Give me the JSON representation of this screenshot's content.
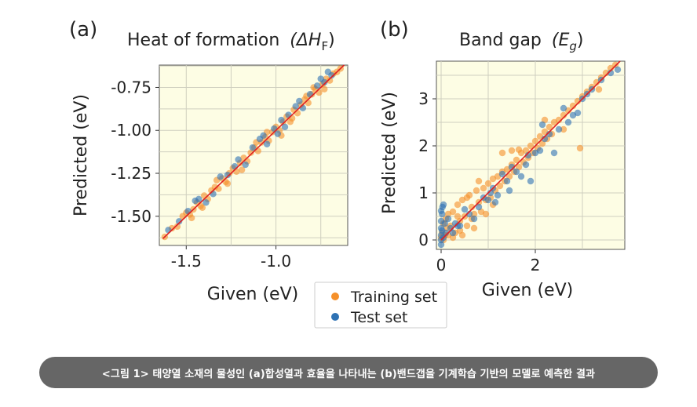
{
  "colors": {
    "training": "#f5902a",
    "test": "#2e72b4",
    "fit_line": "#e02020",
    "plot_bg": "#fdfde4",
    "grid": "#cfcfbf"
  },
  "legend": {
    "items": [
      {
        "label": "Training set",
        "color": "#f5902a"
      },
      {
        "label": "Test set",
        "color": "#2e72b4"
      }
    ]
  },
  "caption": "<그림 1> 태양열 소재의 물성인 (a)합성열과 효율을 나타내는 (b)밴드갭을 기계학습 기반의 모델로 예측한 결과",
  "chart_data": [
    {
      "type": "scatter",
      "panel": "(a)",
      "title": "Heat of formation",
      "title_symbol": "(ΔH",
      "title_subscript": "F",
      "title_close": ")",
      "xlabel": "Given (eV)",
      "ylabel": "Predicted (eV)",
      "xlim": [
        -1.65,
        -0.6
      ],
      "ylim": [
        -1.67,
        -0.62
      ],
      "xticks": [
        -1.5,
        -1.0
      ],
      "xtick_labels": [
        "-1.5",
        "-1.0"
      ],
      "yticks": [
        -1.5,
        -1.25,
        -1.0,
        -0.75
      ],
      "ytick_labels": [
        "-1.50",
        "-1.25",
        "-1.00",
        "-0.75"
      ],
      "grid": true,
      "fit_line": {
        "x": [
          -1.63,
          -0.62
        ],
        "y": [
          -1.63,
          -0.62
        ]
      },
      "series": [
        {
          "name": "Training set",
          "points": [
            [
              -1.62,
              -1.62
            ],
            [
              -1.58,
              -1.57
            ],
            [
              -1.55,
              -1.56
            ],
            [
              -1.52,
              -1.5
            ],
            [
              -1.5,
              -1.48
            ],
            [
              -1.48,
              -1.49
            ],
            [
              -1.46,
              -1.46
            ],
            [
              -1.44,
              -1.42
            ],
            [
              -1.42,
              -1.44
            ],
            [
              -1.4,
              -1.38
            ],
            [
              -1.38,
              -1.4
            ],
            [
              -1.36,
              -1.35
            ],
            [
              -1.34,
              -1.33
            ],
            [
              -1.32,
              -1.34
            ],
            [
              -1.3,
              -1.28
            ],
            [
              -1.28,
              -1.3
            ],
            [
              -1.26,
              -1.25
            ],
            [
              -1.24,
              -1.22
            ],
            [
              -1.22,
              -1.24
            ],
            [
              -1.2,
              -1.19
            ],
            [
              -1.18,
              -1.16
            ],
            [
              -1.16,
              -1.18
            ],
            [
              -1.14,
              -1.13
            ],
            [
              -1.12,
              -1.1
            ],
            [
              -1.1,
              -1.12
            ],
            [
              -1.08,
              -1.07
            ],
            [
              -1.06,
              -1.04
            ],
            [
              -1.04,
              -1.06
            ],
            [
              -1.02,
              -1.01
            ],
            [
              -1.0,
              -0.98
            ],
            [
              -0.98,
              -1.0
            ],
            [
              -0.96,
              -0.95
            ],
            [
              -0.94,
              -0.92
            ],
            [
              -0.92,
              -0.95
            ],
            [
              -0.9,
              -0.88
            ],
            [
              -0.88,
              -0.9
            ],
            [
              -0.86,
              -0.85
            ],
            [
              -0.84,
              -0.82
            ],
            [
              -0.82,
              -0.84
            ],
            [
              -0.8,
              -0.79
            ],
            [
              -0.78,
              -0.76
            ],
            [
              -0.76,
              -0.78
            ],
            [
              -0.74,
              -0.73
            ],
            [
              -0.72,
              -0.7
            ],
            [
              -0.7,
              -0.71
            ],
            [
              -0.68,
              -0.67
            ],
            [
              -0.66,
              -0.66
            ],
            [
              -0.64,
              -0.64
            ],
            [
              -1.47,
              -1.51
            ],
            [
              -1.33,
              -1.29
            ],
            [
              -1.19,
              -1.23
            ],
            [
              -1.05,
              -1.01
            ],
            [
              -0.91,
              -0.93
            ],
            [
              -0.79,
              -0.75
            ],
            [
              -1.27,
              -1.31
            ],
            [
              -1.11,
              -1.07
            ],
            [
              -0.97,
              -1.03
            ],
            [
              -0.83,
              -0.8
            ],
            [
              -1.41,
              -1.45
            ],
            [
              -0.73,
              -0.76
            ]
          ]
        },
        {
          "name": "Test set",
          "points": [
            [
              -1.6,
              -1.58
            ],
            [
              -1.54,
              -1.53
            ],
            [
              -1.49,
              -1.47
            ],
            [
              -1.43,
              -1.4
            ],
            [
              -1.39,
              -1.42
            ],
            [
              -1.35,
              -1.37
            ],
            [
              -1.31,
              -1.27
            ],
            [
              -1.27,
              -1.26
            ],
            [
              -1.23,
              -1.21
            ],
            [
              -1.17,
              -1.2
            ],
            [
              -1.13,
              -1.1
            ],
            [
              -1.09,
              -1.05
            ],
            [
              -1.05,
              -1.08
            ],
            [
              -1.01,
              -0.99
            ],
            [
              -0.97,
              -0.94
            ],
            [
              -0.95,
              -0.98
            ],
            [
              -0.93,
              -0.91
            ],
            [
              -0.89,
              -0.86
            ],
            [
              -0.85,
              -0.87
            ],
            [
              -0.81,
              -0.79
            ],
            [
              -0.77,
              -0.74
            ],
            [
              -0.73,
              -0.72
            ],
            [
              -0.69,
              -0.68
            ],
            [
              -0.71,
              -0.66
            ],
            [
              -0.99,
              -1.02
            ],
            [
              -1.21,
              -1.17
            ],
            [
              -0.87,
              -0.83
            ],
            [
              -0.75,
              -0.7
            ],
            [
              -1.45,
              -1.41
            ],
            [
              -1.07,
              -1.03
            ]
          ]
        }
      ]
    },
    {
      "type": "scatter",
      "panel": "(b)",
      "title": "Band gap",
      "title_symbol": "(E",
      "title_subscript": "g",
      "title_close": ")",
      "xlabel": "Given (eV)",
      "ylabel": "Predicted (eV)",
      "xlim": [
        -0.1,
        3.9
      ],
      "ylim": [
        -0.2,
        3.8
      ],
      "xticks": [
        0,
        2
      ],
      "xtick_labels": [
        "0",
        "2"
      ],
      "yticks": [
        0,
        1,
        2,
        3
      ],
      "ytick_labels": [
        "0",
        "1",
        "2",
        "3"
      ],
      "grid": true,
      "fit_line": {
        "x": [
          0.0,
          3.8
        ],
        "y": [
          0.0,
          3.8
        ]
      },
      "series": [
        {
          "name": "Training set",
          "points": [
            [
              0.0,
              0.05
            ],
            [
              0.02,
              0.15
            ],
            [
              0.05,
              0.35
            ],
            [
              0.08,
              0.1
            ],
            [
              0.1,
              0.45
            ],
            [
              0.12,
              0.25
            ],
            [
              0.15,
              0.55
            ],
            [
              0.2,
              0.3
            ],
            [
              0.25,
              0.6
            ],
            [
              0.3,
              0.15
            ],
            [
              0.35,
              0.75
            ],
            [
              0.4,
              0.4
            ],
            [
              0.45,
              0.85
            ],
            [
              0.5,
              0.5
            ],
            [
              0.55,
              0.3
            ],
            [
              0.6,
              0.95
            ],
            [
              0.65,
              0.7
            ],
            [
              0.7,
              0.55
            ],
            [
              0.75,
              1.05
            ],
            [
              0.8,
              0.8
            ],
            [
              0.85,
              0.6
            ],
            [
              0.9,
              1.1
            ],
            [
              0.95,
              0.85
            ],
            [
              1.0,
              1.2
            ],
            [
              1.05,
              0.9
            ],
            [
              1.1,
              1.3
            ],
            [
              1.15,
              1.05
            ],
            [
              1.2,
              1.35
            ],
            [
              1.25,
              1.15
            ],
            [
              1.3,
              1.45
            ],
            [
              1.35,
              1.25
            ],
            [
              1.4,
              1.5
            ],
            [
              1.45,
              1.35
            ],
            [
              1.5,
              1.6
            ],
            [
              1.55,
              1.45
            ],
            [
              1.6,
              1.7
            ],
            [
              1.65,
              1.55
            ],
            [
              1.7,
              1.85
            ],
            [
              1.75,
              1.65
            ],
            [
              1.8,
              1.9
            ],
            [
              1.85,
              1.75
            ],
            [
              1.9,
              2.0
            ],
            [
              1.95,
              1.85
            ],
            [
              2.0,
              2.1
            ],
            [
              2.05,
              1.95
            ],
            [
              2.1,
              2.2
            ],
            [
              2.15,
              2.05
            ],
            [
              2.2,
              2.3
            ],
            [
              2.25,
              2.15
            ],
            [
              2.3,
              2.4
            ],
            [
              2.35,
              2.25
            ],
            [
              2.4,
              2.5
            ],
            [
              2.5,
              2.55
            ],
            [
              2.6,
              2.65
            ],
            [
              2.7,
              2.75
            ],
            [
              2.8,
              2.85
            ],
            [
              2.9,
              2.95
            ],
            [
              3.0,
              3.05
            ],
            [
              3.1,
              3.15
            ],
            [
              3.2,
              3.25
            ],
            [
              3.3,
              3.35
            ],
            [
              3.4,
              3.45
            ],
            [
              3.5,
              3.55
            ],
            [
              3.6,
              3.65
            ],
            [
              3.7,
              3.72
            ],
            [
              1.3,
              1.85
            ],
            [
              1.5,
              1.9
            ],
            [
              1.65,
              1.92
            ],
            [
              2.95,
              1.95
            ],
            [
              0.55,
              0.9
            ],
            [
              0.65,
              0.45
            ],
            [
              0.4,
              0.2
            ],
            [
              0.25,
              0.05
            ],
            [
              0.8,
              1.25
            ],
            [
              0.95,
              0.55
            ],
            [
              1.1,
              0.75
            ],
            [
              0.35,
              0.5
            ],
            [
              0.15,
              0.1
            ],
            [
              0.05,
              0.0
            ],
            [
              0.45,
              0.1
            ],
            [
              0.7,
              0.25
            ],
            [
              2.6,
              2.35
            ],
            [
              3.35,
              3.2
            ],
            [
              2.2,
              2.55
            ]
          ]
        },
        {
          "name": "Test set",
          "points": [
            [
              0.0,
              0.0
            ],
            [
              0.0,
              0.1
            ],
            [
              0.0,
              0.25
            ],
            [
              0.0,
              0.4
            ],
            [
              0.0,
              -0.1
            ],
            [
              0.02,
              0.55
            ],
            [
              0.02,
              0.2
            ],
            [
              0.05,
              0.75
            ],
            [
              0.05,
              0.05
            ],
            [
              0.08,
              0.35
            ],
            [
              0.1,
              0.15
            ],
            [
              0.15,
              0.45
            ],
            [
              0.2,
              0.25
            ],
            [
              0.25,
              0.15
            ],
            [
              0.3,
              0.35
            ],
            [
              0.4,
              0.3
            ],
            [
              0.5,
              0.65
            ],
            [
              0.6,
              0.55
            ],
            [
              0.7,
              0.45
            ],
            [
              0.8,
              0.7
            ],
            [
              0.9,
              0.9
            ],
            [
              1.0,
              0.85
            ],
            [
              1.05,
              1.0
            ],
            [
              1.1,
              1.1
            ],
            [
              1.2,
              0.95
            ],
            [
              1.3,
              1.4
            ],
            [
              1.4,
              1.25
            ],
            [
              1.5,
              1.55
            ],
            [
              1.6,
              1.45
            ],
            [
              1.7,
              1.35
            ],
            [
              1.8,
              1.6
            ],
            [
              1.9,
              1.25
            ],
            [
              2.0,
              1.85
            ],
            [
              2.1,
              1.9
            ],
            [
              2.2,
              2.15
            ],
            [
              2.3,
              2.25
            ],
            [
              2.4,
              1.85
            ],
            [
              2.5,
              2.35
            ],
            [
              2.6,
              2.8
            ],
            [
              2.7,
              2.5
            ],
            [
              2.8,
              2.65
            ],
            [
              2.9,
              2.7
            ],
            [
              3.0,
              3.0
            ],
            [
              3.1,
              3.1
            ],
            [
              3.2,
              3.2
            ],
            [
              3.4,
              3.4
            ],
            [
              3.6,
              3.55
            ],
            [
              3.75,
              3.62
            ],
            [
              0.0,
              0.62
            ],
            [
              0.03,
              0.7
            ],
            [
              1.15,
              0.8
            ],
            [
              1.45,
              1.05
            ],
            [
              1.85,
              1.8
            ],
            [
              2.15,
              2.45
            ],
            [
              0.35,
              0.3
            ]
          ]
        }
      ]
    }
  ]
}
